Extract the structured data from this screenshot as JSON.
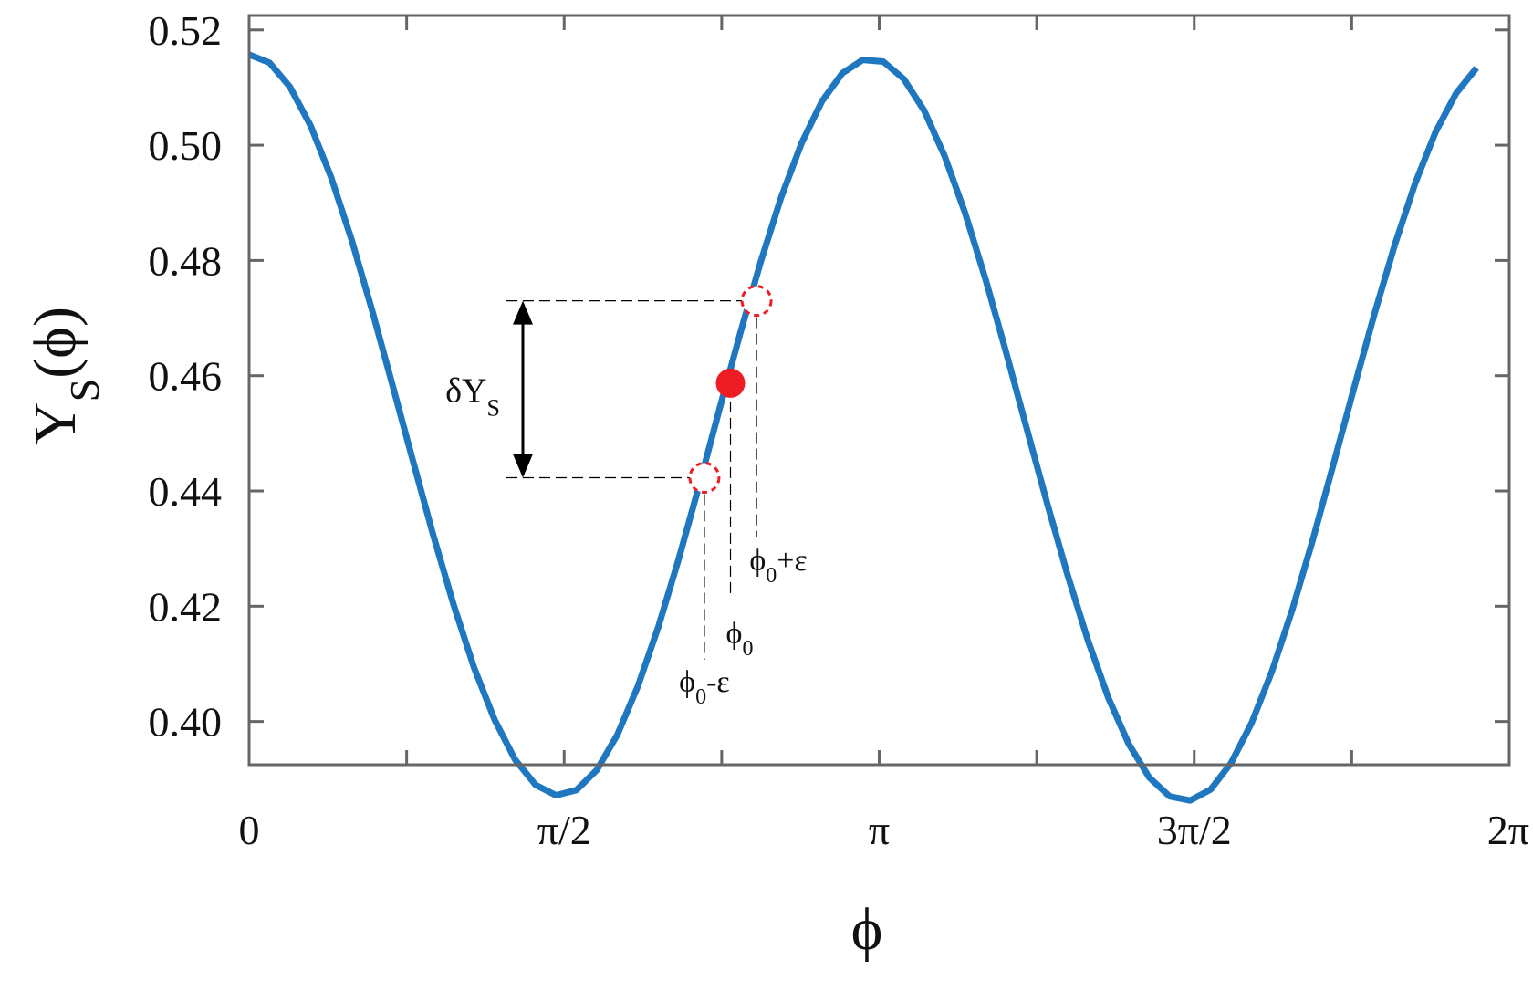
{
  "chart_data": {
    "type": "line",
    "xlabel": "ϕ",
    "ylabel": {
      "main": "Y",
      "sub": "S",
      "tail": "(ϕ)"
    },
    "xlim": [
      0,
      6.2832
    ],
    "ylim": [
      0.3925,
      0.5225
    ],
    "grid": false,
    "xticks": [
      {
        "value": 0,
        "label": "0"
      },
      {
        "value": 1.5708,
        "label": "π/2"
      },
      {
        "value": 3.1416,
        "label": "π"
      },
      {
        "value": 4.7124,
        "label": "3π/2"
      },
      {
        "value": 6.2832,
        "label": "2π"
      }
    ],
    "yticks": [
      {
        "value": 0.4,
        "label": "0.40"
      },
      {
        "value": 0.42,
        "label": "0.42"
      },
      {
        "value": 0.44,
        "label": "0.44"
      },
      {
        "value": 0.46,
        "label": "0.46"
      },
      {
        "value": 0.48,
        "label": "0.48"
      },
      {
        "value": 0.5,
        "label": "0.50"
      },
      {
        "value": 0.52,
        "label": "0.52"
      }
    ],
    "series": [
      {
        "color": "#1f77c0",
        "x": [
          0,
          0.102,
          0.204,
          0.306,
          0.408,
          0.51,
          0.612,
          0.714,
          0.816,
          0.918,
          1.02,
          1.122,
          1.224,
          1.326,
          1.428,
          1.53,
          1.632,
          1.734,
          1.836,
          1.938,
          2.04,
          2.142,
          2.244,
          2.346,
          2.448,
          2.55,
          2.652,
          2.754,
          2.856,
          2.958,
          3.06,
          3.162,
          3.264,
          3.366,
          3.468,
          3.57,
          3.672,
          3.774,
          3.876,
          3.978,
          4.08,
          4.182,
          4.284,
          4.386,
          4.488,
          4.59,
          4.692,
          4.794,
          4.896,
          4.998,
          5.1,
          5.202,
          5.304,
          5.406,
          5.508,
          5.61,
          5.712,
          5.814,
          5.916,
          6.018,
          6.12
        ],
        "y": [
          0.5157,
          0.5143,
          0.5101,
          0.5034,
          0.4945,
          0.4837,
          0.4715,
          0.4585,
          0.4453,
          0.4323,
          0.4202,
          0.4093,
          0.4003,
          0.3934,
          0.389,
          0.3872,
          0.3881,
          0.3916,
          0.3977,
          0.4061,
          0.4164,
          0.4282,
          0.441,
          0.4543,
          0.4673,
          0.4797,
          0.4909,
          0.5003,
          0.5076,
          0.5125,
          0.5148,
          0.5145,
          0.5115,
          0.506,
          0.4981,
          0.4882,
          0.4767,
          0.4641,
          0.451,
          0.438,
          0.4255,
          0.4141,
          0.4041,
          0.3961,
          0.3903,
          0.387,
          0.3863,
          0.3882,
          0.3928,
          0.3997,
          0.4087,
          0.4195,
          0.4316,
          0.4446,
          0.4577,
          0.4706,
          0.4827,
          0.4934,
          0.5023,
          0.509,
          0.5134
        ]
      }
    ],
    "operating_point": {
      "x": 2.4,
      "y": 0.4587,
      "label": "ϕ",
      "sub": "0",
      "color": "#ee1c25"
    },
    "lower_point": {
      "x": 2.27,
      "y": 0.4423,
      "label": "ϕ",
      "sub": "0",
      "suffix": "-ε"
    },
    "upper_point": {
      "x": 2.53,
      "y": 0.473,
      "label": "ϕ",
      "sub": "0",
      "suffix": "+ε"
    },
    "delta_label": {
      "main": "δY",
      "sub": "S"
    }
  }
}
